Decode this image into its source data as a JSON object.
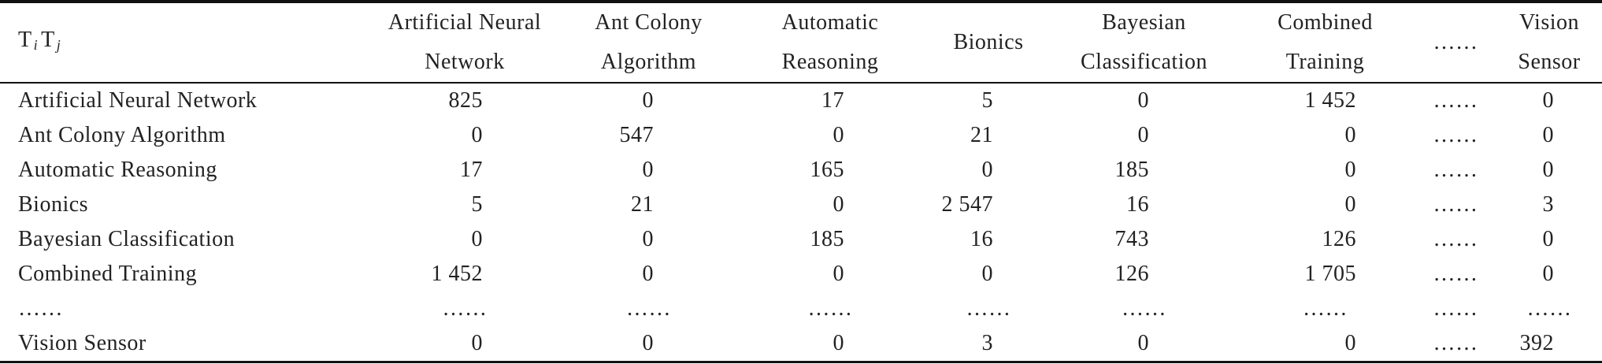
{
  "table": {
    "corner": [
      "T",
      "i",
      "T",
      "j"
    ],
    "columns": [
      [
        "Artificial Neural",
        "Network"
      ],
      [
        "Ant Colony",
        "Algorithm"
      ],
      [
        "Automatic",
        "Reasoning"
      ],
      [
        "Bionics"
      ],
      [
        "Bayesian",
        "Classification"
      ],
      [
        "Combined",
        "Training"
      ],
      [
        "……"
      ],
      [
        "Vision",
        "Sensor"
      ]
    ],
    "rows": [
      {
        "label": "Artificial Neural Network",
        "cells": [
          "825",
          "0",
          "17",
          "5",
          "0",
          "1 452",
          "……",
          "0"
        ]
      },
      {
        "label": "Ant Colony Algorithm",
        "cells": [
          "0",
          "547",
          "0",
          "21",
          "0",
          "0",
          "……",
          "0"
        ]
      },
      {
        "label": "Automatic Reasoning",
        "cells": [
          "17",
          "0",
          "165",
          "0",
          "185",
          "0",
          "……",
          "0"
        ]
      },
      {
        "label": "Bionics",
        "cells": [
          "5",
          "21",
          "0",
          "2 547",
          "16",
          "0",
          "……",
          "3"
        ]
      },
      {
        "label": "Bayesian Classification",
        "cells": [
          "0",
          "0",
          "185",
          "16",
          "743",
          "126",
          "……",
          "0"
        ]
      },
      {
        "label": "Combined Training",
        "cells": [
          "1 452",
          "0",
          "0",
          "0",
          "126",
          "1 705",
          "……",
          "0"
        ]
      },
      {
        "label": "……",
        "cells": [
          "……",
          "……",
          "……",
          "……",
          "……",
          "……",
          "……",
          "……"
        ]
      },
      {
        "label": "Vision Sensor",
        "cells": [
          "0",
          "0",
          "0",
          "3",
          "0",
          "0",
          "……",
          "392"
        ]
      }
    ]
  }
}
